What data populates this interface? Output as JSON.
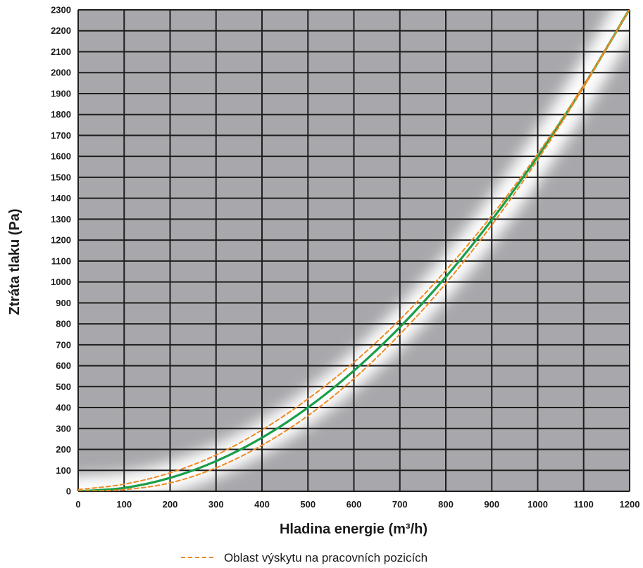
{
  "chart_data": {
    "type": "line",
    "xlabel": "Hladina energie (m³/h)",
    "ylabel": "Ztráta tlaku (Pa)",
    "xlim": [
      0,
      1200
    ],
    "ylim": [
      0,
      2300
    ],
    "xticks": [
      0,
      100,
      200,
      300,
      400,
      500,
      600,
      700,
      800,
      900,
      1000,
      1100,
      1200
    ],
    "yticks": [
      0,
      100,
      200,
      300,
      400,
      500,
      600,
      700,
      800,
      900,
      1000,
      1100,
      1200,
      1300,
      1400,
      1500,
      1600,
      1700,
      1800,
      1900,
      2000,
      2100,
      2200,
      2300
    ],
    "grid": true,
    "legend_position": "bottom-center",
    "x": [
      0,
      100,
      200,
      300,
      400,
      500,
      600,
      700,
      800,
      900,
      1000,
      1100,
      1200
    ],
    "series": [
      {
        "values": [
          0,
          16,
          64,
          144,
          256,
          400,
          576,
          784,
          1024,
          1296,
          1600,
          1936,
          2304
        ],
        "color": "#1a9e4a",
        "style": "solid"
      },
      {
        "name": "Oblast výskytu na pracovních pozicích",
        "values": [
          8,
          34,
          88,
          173,
          293,
          441,
          616,
          820,
          1055,
          1317,
          1612,
          1940,
          2304
        ],
        "color": "#f08a24",
        "style": "dashed"
      },
      {
        "values": [
          0,
          8,
          40,
          112,
          220,
          361,
          538,
          750,
          993,
          1272,
          1584,
          1931,
          2304
        ],
        "color": "#f08a24",
        "style": "dashed",
        "legend": false
      }
    ],
    "legend": [
      {
        "label": "Oblast výskytu na pracovních pozicích",
        "color": "#f08a24",
        "style": "dashed"
      }
    ],
    "plot_background": "#a8a8ac",
    "grid_color": "#1e1e1e"
  }
}
